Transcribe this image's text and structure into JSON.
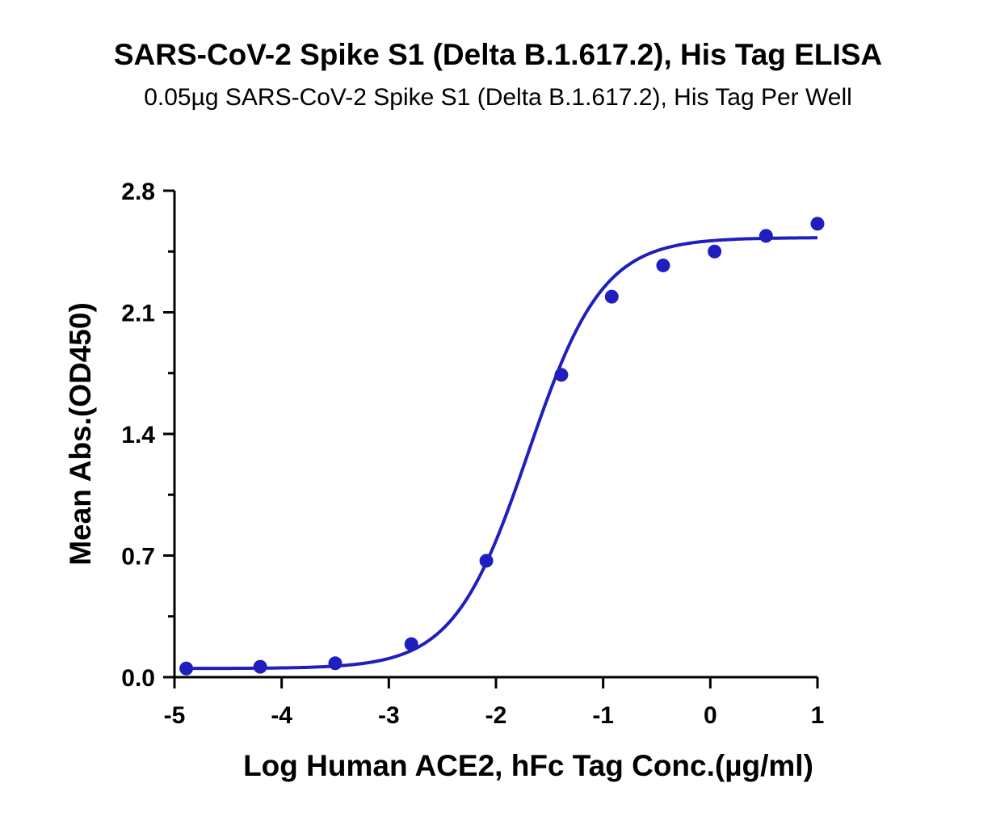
{
  "chart_data": {
    "type": "scatter",
    "title": "SARS-CoV-2 Spike S1 (Delta B.1.617.2), His Tag ELISA",
    "subtitle": "0.05µg SARS-CoV-2 Spike S1 (Delta B.1.617.2), His Tag Per Well",
    "xlabel": "Log Human ACE2, hFc Tag Conc.(µg/ml)",
    "ylabel": "Mean Abs.(OD450)",
    "xlim": [
      -5,
      1
    ],
    "ylim": [
      0,
      2.8
    ],
    "xticks": [
      "-5",
      "-4",
      "-3",
      "-2",
      "-1",
      "0",
      "1"
    ],
    "yticks": [
      "0.0",
      "0.7",
      "1.4",
      "2.1",
      "2.8"
    ],
    "grid": false,
    "legend": "none",
    "series_color": "#1f1fbf",
    "points": [
      {
        "x": -4.89,
        "y": 0.05
      },
      {
        "x": -4.2,
        "y": 0.06
      },
      {
        "x": -3.5,
        "y": 0.08
      },
      {
        "x": -2.79,
        "y": 0.19
      },
      {
        "x": -2.09,
        "y": 0.67
      },
      {
        "x": -1.39,
        "y": 1.74
      },
      {
        "x": -0.92,
        "y": 2.19
      },
      {
        "x": -0.44,
        "y": 2.37
      },
      {
        "x": 0.04,
        "y": 2.45
      },
      {
        "x": 0.52,
        "y": 2.54
      },
      {
        "x": 1.0,
        "y": 2.61
      }
    ],
    "fit": {
      "model": "4PL",
      "bottom": 0.05,
      "top": 2.53,
      "logEC50": -1.7,
      "hill": 1.25
    }
  }
}
